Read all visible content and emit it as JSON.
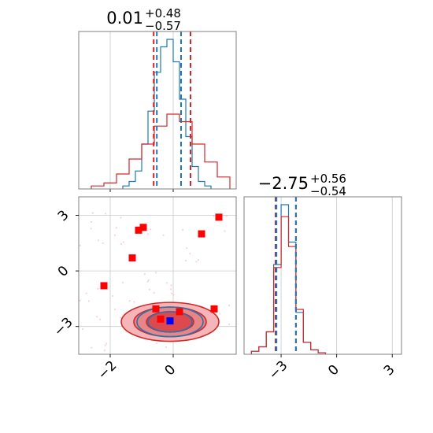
{
  "chart_data": {
    "type": "corner",
    "colors": {
      "blue": "#1f77b4",
      "red": "#d62728",
      "truth": "#0000ff",
      "points": "#ff0000"
    },
    "panels": [
      {
        "name": "param-1-marginal",
        "type": "histogram",
        "title": {
          "median": "0.01",
          "plus": "+0.48",
          "minus": "−0.57"
        },
        "xlim": [
          -3.0,
          2.0
        ],
        "grid_x": [
          -2,
          0
        ],
        "quantiles_blue": [
          -0.52,
          0.25
        ],
        "quantiles_red": [
          -0.62,
          0.55
        ],
        "series": [
          {
            "name": "",
            "color": "#1f77b4",
            "bins": [
              -1.6,
              -1.4,
              -1.2,
              -1.0,
              -0.8,
              -0.6,
              -0.4,
              -0.2,
              0.0,
              0.2,
              0.4,
              0.6,
              0.8,
              1.0,
              1.2
            ],
            "heights": [
              0.02,
              0.05,
              0.12,
              0.3,
              0.52,
              0.78,
              0.95,
              1.0,
              0.85,
              0.6,
              0.35,
              0.15,
              0.05,
              0.02
            ]
          },
          {
            "name": "",
            "color": "#d62728",
            "bins": [
              -2.6,
              -2.2,
              -1.8,
              -1.4,
              -1.0,
              -0.6,
              -0.2,
              0.2,
              0.6,
              1.0,
              1.4,
              1.8
            ],
            "heights": [
              0.02,
              0.04,
              0.1,
              0.2,
              0.3,
              0.42,
              0.5,
              0.45,
              0.3,
              0.18,
              0.08
            ]
          }
        ]
      },
      {
        "name": "param-2-marginal",
        "type": "histogram",
        "title": {
          "median": "−2.75",
          "plus": "+0.56",
          "minus": "−0.54"
        },
        "xlim": [
          -5.0,
          3.5
        ],
        "xticks": [
          -3,
          0,
          3
        ],
        "quantiles_blue": [
          -3.25,
          -2.2
        ],
        "quantiles_red": [
          -3.3,
          -2.2
        ],
        "series": [
          {
            "name": "",
            "color": "#1f77b4",
            "bins": [
              -4.6,
              -4.2,
              -3.8,
              -3.4,
              -3.0,
              -2.6,
              -2.2,
              -1.8,
              -1.4,
              -1.0,
              -0.6
            ],
            "heights": [
              0.02,
              0.05,
              0.15,
              0.6,
              1.0,
              0.75,
              0.28,
              0.08,
              0.03,
              0.01
            ]
          },
          {
            "name": "",
            "color": "#d62728",
            "bins": [
              -4.6,
              -4.2,
              -3.8,
              -3.4,
              -3.0,
              -2.6,
              -2.2,
              -1.8,
              -1.4,
              -1.0,
              -0.6
            ],
            "heights": [
              0.02,
              0.05,
              0.15,
              0.58,
              0.92,
              0.72,
              0.3,
              0.08,
              0.03,
              0.01
            ]
          }
        ]
      },
      {
        "name": "param-1-vs-param-2-joint",
        "type": "scatter-contour",
        "xlim": [
          -3.0,
          2.0
        ],
        "ylim": [
          -4.5,
          4.0
        ],
        "xticks": [
          -2,
          0
        ],
        "yticks": [
          3,
          0,
          -3
        ],
        "center": [
          -0.1,
          -2.75
        ],
        "contour_radii_red": [
          [
            1.55,
            1.05
          ],
          [
            1.15,
            0.8
          ],
          [
            0.75,
            0.55
          ]
        ],
        "contour_radii_blue": [
          [
            1.05,
            0.8
          ],
          [
            0.7,
            0.55
          ]
        ],
        "truth": [
          -0.1,
          -2.7
        ],
        "red_points": [
          [
            -2.2,
            -0.8
          ],
          [
            -1.3,
            0.7
          ],
          [
            -1.1,
            2.2
          ],
          [
            -0.95,
            2.35
          ],
          [
            0.9,
            2.0
          ],
          [
            1.45,
            2.9
          ],
          [
            1.3,
            -2.05
          ],
          [
            -0.55,
            -2.05
          ],
          [
            0.2,
            -2.2
          ],
          [
            -0.4,
            -2.6
          ]
        ]
      }
    ]
  }
}
